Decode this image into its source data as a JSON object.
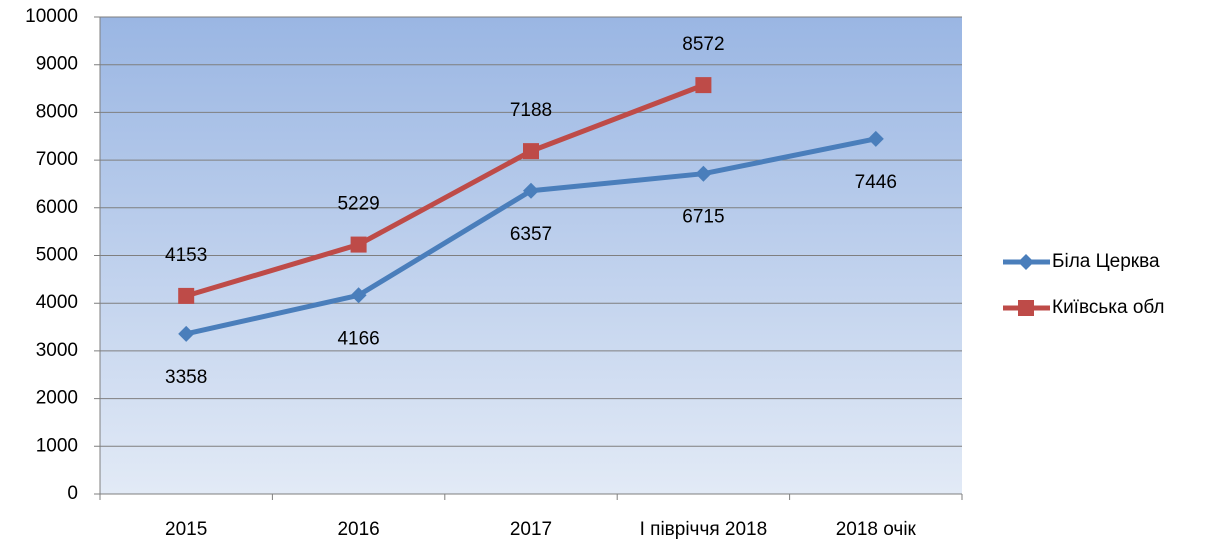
{
  "chart_data": {
    "type": "line",
    "categories": [
      "2015",
      "2016",
      "2017",
      "І півріччя 2018",
      "2018 очік"
    ],
    "series": [
      {
        "name": "Біла Церква",
        "color": "#4a7ebb",
        "marker": "diamond",
        "values": [
          3358,
          4166,
          6357,
          6715,
          7446
        ]
      },
      {
        "name": "Київська обл",
        "color": "#be4b48",
        "marker": "square",
        "values": [
          4153,
          5229,
          7188,
          8572,
          null
        ]
      }
    ],
    "ylim": [
      0,
      10000
    ],
    "yticks": [
      0,
      1000,
      2000,
      3000,
      4000,
      5000,
      6000,
      7000,
      8000,
      9000,
      10000
    ],
    "grid": true,
    "legend": "right"
  }
}
